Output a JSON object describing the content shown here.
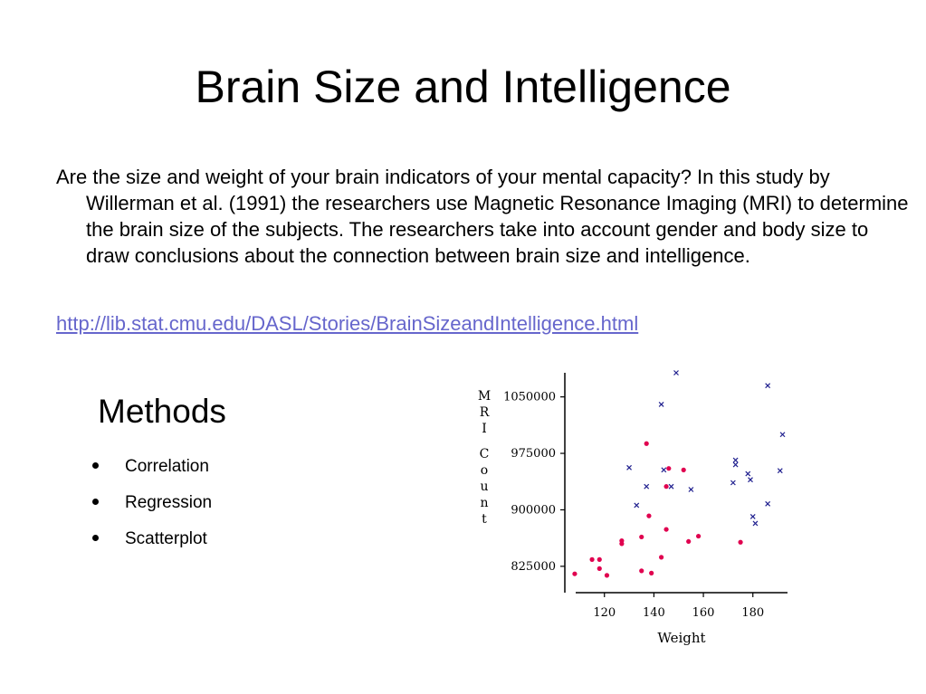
{
  "slide": {
    "title": "Brain Size and Intelligence",
    "paragraph": "Are the size and weight of your brain indicators of your mental capacity? In this study by Willerman et al. (1991) the researchers use Magnetic Resonance Imaging (MRI) to determine the brain size of the subjects. The researchers take into account gender and body size to draw conclusions about the connection between brain size and intelligence.",
    "link": "http://lib.stat.cmu.edu/DASL/Stories/BrainSizeandIntelligence.html",
    "methods_title": "Methods",
    "methods": [
      "Correlation",
      "Regression",
      "Scatterplot"
    ]
  },
  "chart_data": {
    "type": "scatter",
    "title": "",
    "xlabel": "Weight",
    "ylabel": "MRI Count",
    "xticks": [
      "120",
      "140",
      "160",
      "180"
    ],
    "yticks": [
      "825000",
      "900000",
      "975000",
      "1050000"
    ],
    "xlim": [
      104,
      194
    ],
    "ylim": [
      790000,
      1082000
    ],
    "colors": {
      "females": "#e0004f",
      "males": "#20208f",
      "axis": "#000000"
    },
    "series": [
      {
        "marker": "dot",
        "points": [
          [
            108,
            815000
          ],
          [
            115,
            834000
          ],
          [
            118,
            822000
          ],
          [
            118,
            834000
          ],
          [
            121,
            813000
          ],
          [
            127,
            855000
          ],
          [
            127,
            859000
          ],
          [
            135,
            819000
          ],
          [
            135,
            864000
          ],
          [
            137,
            988000
          ],
          [
            138,
            892000
          ],
          [
            139,
            816000
          ],
          [
            143,
            837000
          ],
          [
            145,
            931000
          ],
          [
            145,
            874000
          ],
          [
            146,
            955000
          ],
          [
            152,
            953000
          ],
          [
            154,
            858000
          ],
          [
            158,
            865000
          ],
          [
            175,
            857000
          ]
        ]
      },
      {
        "marker": "x",
        "points": [
          [
            130,
            956000
          ],
          [
            133,
            906000
          ],
          [
            137,
            931000
          ],
          [
            143,
            1040000
          ],
          [
            144,
            953000
          ],
          [
            147,
            931000
          ],
          [
            149,
            1082000
          ],
          [
            155,
            927000
          ],
          [
            172,
            936000
          ],
          [
            173,
            966000
          ],
          [
            173,
            960000
          ],
          [
            178,
            948000
          ],
          [
            179,
            940000
          ],
          [
            180,
            891000
          ],
          [
            181,
            882000
          ],
          [
            186,
            1065000
          ],
          [
            186,
            908000
          ],
          [
            191,
            952000
          ],
          [
            192,
            1000000
          ]
        ]
      }
    ]
  }
}
